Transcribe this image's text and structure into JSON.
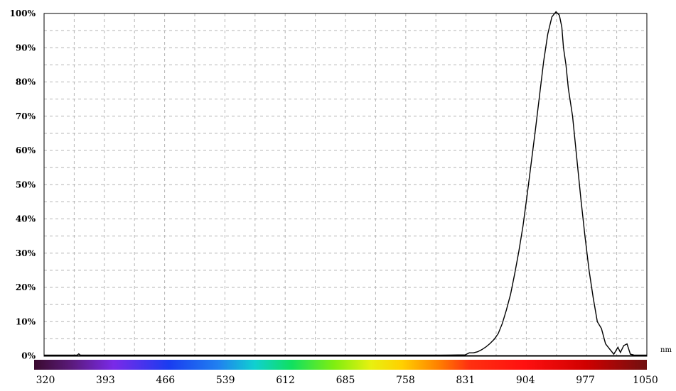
{
  "chart_data": {
    "type": "line",
    "title": "",
    "xlabel": "",
    "ylabel": "",
    "x_unit": "nm",
    "xlim": [
      320,
      1050
    ],
    "ylim": [
      0,
      100
    ],
    "x_ticks": [
      "320",
      "393",
      "466",
      "539",
      "612",
      "685",
      "758",
      "831",
      "904",
      "977",
      "1050"
    ],
    "y_ticks": [
      "0%",
      "10%",
      "20%",
      "30%",
      "40%",
      "50%",
      "60%",
      "70%",
      "80%",
      "90%",
      "100%"
    ],
    "grid": true,
    "legend": "none",
    "colorbar": "visible spectrum",
    "line_color": "#000000",
    "series": [
      {
        "x": [
          320,
          360,
          362,
          364,
          400,
          500,
          600,
          700,
          800,
          830,
          835,
          840,
          845,
          850,
          855,
          860,
          865,
          870,
          875,
          880,
          885,
          890,
          895,
          900,
          905,
          910,
          915,
          920,
          925,
          930,
          935,
          940,
          944,
          947,
          949,
          952,
          955,
          960,
          965,
          970,
          975,
          980,
          985,
          990,
          995,
          1000,
          1005,
          1010,
          1015,
          1018,
          1022,
          1026,
          1030,
          1035,
          1040,
          1045,
          1050
        ],
        "y": [
          0.2,
          0.2,
          0.6,
          0.2,
          0.2,
          0.2,
          0.2,
          0.2,
          0.2,
          0.3,
          0.9,
          0.9,
          1.2,
          1.8,
          2.6,
          3.6,
          4.8,
          6.5,
          9.5,
          13.5,
          18,
          24,
          30.5,
          38,
          47,
          56.5,
          66,
          76,
          86,
          94,
          99,
          100.5,
          99.5,
          96,
          90,
          85,
          78,
          70,
          58,
          46,
          35,
          25,
          17,
          10,
          8,
          3.5,
          2,
          0.5,
          2.5,
          1,
          3,
          3.5,
          0.5,
          0.2,
          0.2,
          0.2,
          0.2
        ]
      }
    ]
  }
}
